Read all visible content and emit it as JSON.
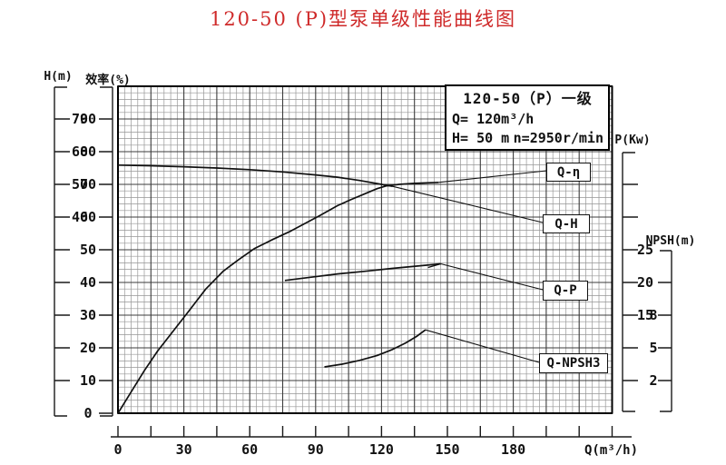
{
  "title": "120-50 (P)型泵单级性能曲线图",
  "colors": {
    "title": "#cf2a2a",
    "curve": "#111111",
    "grid_minor": "#969696",
    "grid_major": "#3c3c3c",
    "border": "#000000"
  },
  "info_box": {
    "title": "120-50（P）一级",
    "q_line": "Q= 120m³/h",
    "h_value": "H= 50 m",
    "n_value": "n=2950r/min"
  },
  "axes": {
    "H": {
      "header": "H(m)",
      "tick_labels": [
        "70",
        "60",
        "50",
        "40",
        "",
        "",
        "",
        "",
        ""
      ]
    },
    "eff": {
      "header": "效率(%)",
      "tick_labels": [
        "90",
        "80",
        "70",
        "60",
        "50",
        "40",
        "30",
        "20",
        "10",
        "0"
      ]
    },
    "P": {
      "header": "P(Kw)",
      "tick_labels": [
        "",
        "",
        "25",
        "20",
        "15",
        "",
        ""
      ]
    },
    "NPSH": {
      "header": "NPSH(m)",
      "tick_labels": [
        "",
        "8",
        "5",
        "2"
      ]
    }
  },
  "x_axis": {
    "unit_label": "Q(m³/h)",
    "tick_labels": [
      "0",
      "30",
      "60",
      "90",
      "120",
      "150",
      "180"
    ]
  },
  "curve_labels": [
    "Q-η",
    "Q-H",
    "Q-P",
    "Q-NPSH3"
  ],
  "chart_data": {
    "type": "line",
    "title": "120-50 (P)型泵单级性能曲线图",
    "grid": true,
    "x": {
      "label": "Q(m³/h)",
      "min": 0,
      "max": 225,
      "tick_step": 15,
      "labeled_max": 180
    },
    "y_axes": {
      "H": {
        "label": "H(m)",
        "unit": "m",
        "labeled_ticks": [
          70,
          60,
          50,
          40
        ]
      },
      "eff": {
        "label": "效率(%)",
        "unit": "%",
        "labeled_ticks": [
          90,
          80,
          70,
          60,
          50,
          40,
          30,
          20,
          10,
          0
        ]
      },
      "P": {
        "label": "P(Kw)",
        "unit": "Kw",
        "labeled_ticks": [
          25,
          20,
          15
        ]
      },
      "NPSH": {
        "label": "NPSH(m)",
        "unit": "m",
        "labeled_ticks": [
          8,
          5,
          2
        ]
      }
    },
    "rated": {
      "Q": "120m³/h",
      "H": "50 m",
      "n": "2950r/min"
    },
    "series": [
      {
        "name": "Q-H",
        "axis": "H",
        "points": [
          [
            0,
            55.9
          ],
          [
            15,
            55.7
          ],
          [
            30,
            55.4
          ],
          [
            45,
            55.0
          ],
          [
            60,
            54.5
          ],
          [
            75,
            53.8
          ],
          [
            90,
            52.9
          ],
          [
            100,
            52.2
          ],
          [
            110,
            51.2
          ],
          [
            120,
            50.0
          ],
          [
            125,
            49.4
          ]
        ]
      },
      {
        "name": "Q-η",
        "axis": "eff",
        "points": [
          [
            0,
            0
          ],
          [
            6,
            6.5
          ],
          [
            12,
            13
          ],
          [
            18,
            19
          ],
          [
            25,
            25
          ],
          [
            32,
            31
          ],
          [
            40,
            38
          ],
          [
            48,
            43.5
          ],
          [
            55,
            47
          ],
          [
            62,
            50.3
          ],
          [
            70,
            53
          ],
          [
            78,
            55.5
          ],
          [
            85,
            58
          ],
          [
            92,
            60.5
          ],
          [
            100,
            63.5
          ],
          [
            106,
            65.3
          ],
          [
            112,
            67
          ],
          [
            118,
            68.7
          ],
          [
            122,
            69.5
          ],
          [
            128,
            70
          ],
          [
            135,
            70.3
          ],
          [
            146,
            70.6
          ]
        ]
      },
      {
        "name": "Q-P",
        "axis": "P",
        "points": [
          [
            76,
            20.3
          ],
          [
            88,
            20.8
          ],
          [
            100,
            21.3
          ],
          [
            112,
            21.7
          ],
          [
            125,
            22.15
          ],
          [
            136,
            22.5
          ],
          [
            147,
            22.85
          ]
        ]
      },
      {
        "name": "Q-NPSH3",
        "axis": "NPSH",
        "points": [
          [
            94,
            3.25
          ],
          [
            102,
            3.5
          ],
          [
            110,
            3.85
          ],
          [
            118,
            4.3
          ],
          [
            125,
            4.85
          ],
          [
            131,
            5.45
          ],
          [
            136,
            6.05
          ],
          [
            140,
            6.65
          ]
        ]
      }
    ]
  }
}
